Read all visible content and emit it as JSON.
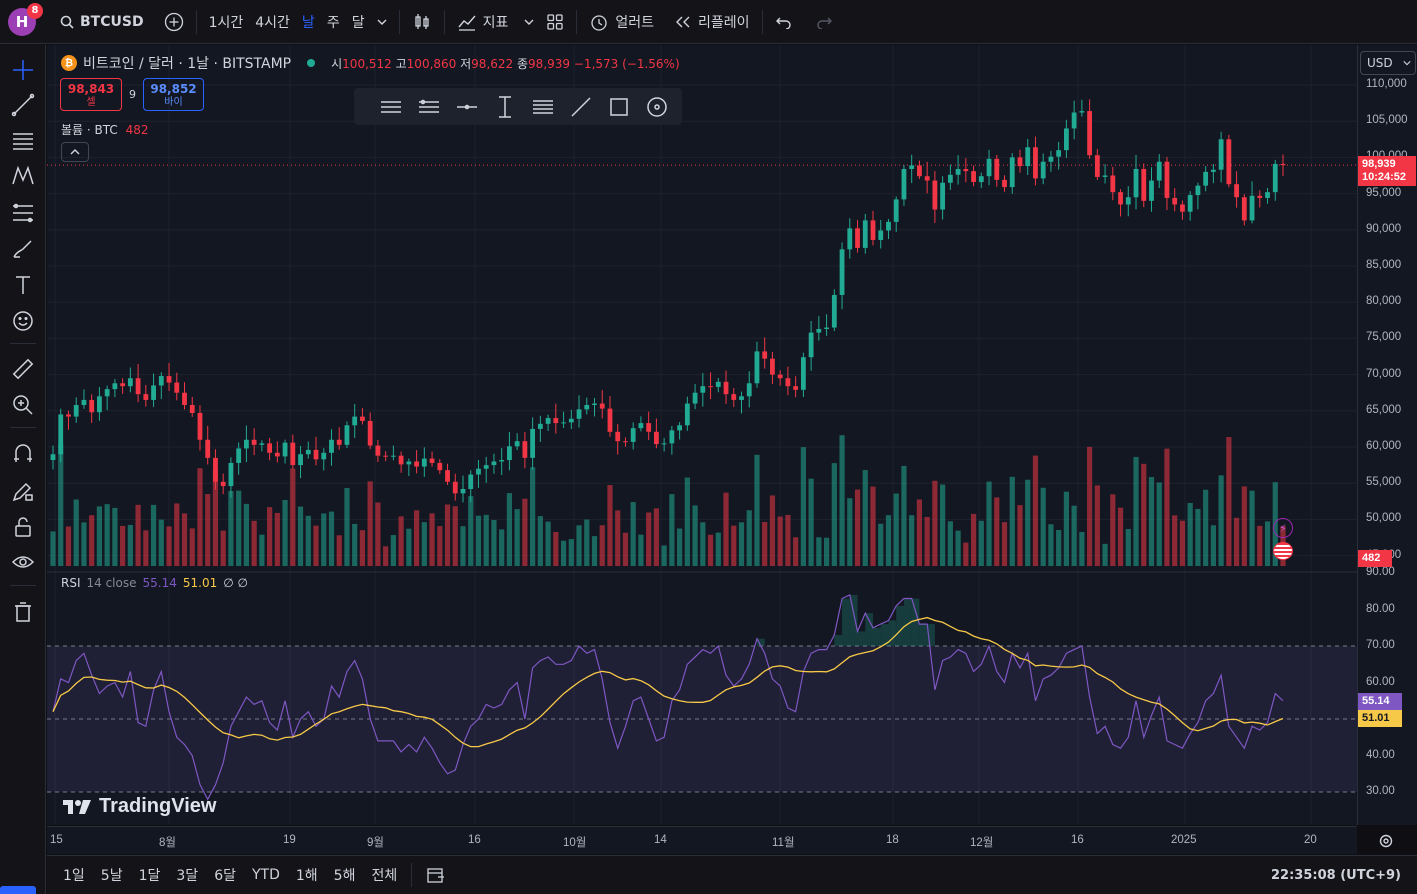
{
  "topbar": {
    "avatar_letter": "H",
    "avatar_badge": "8",
    "symbol": "BTCUSD",
    "intervals": [
      "1시간",
      "4시간",
      "날",
      "주",
      "달"
    ],
    "active_interval": "날",
    "indicators_label": "지표",
    "alert_label": "얼러트",
    "replay_label": "리플레이"
  },
  "legend": {
    "title": "비트코인 / 달러 · 1날 · BITSTAMP",
    "open_label": "시",
    "open": "100,512",
    "high_label": "고",
    "high": "100,860",
    "low_label": "저",
    "low": "98,622",
    "close_label": "종",
    "close": "98,939",
    "change": "−1,573 (−1.56%)",
    "sell_price": "98,843",
    "sell_label": "셀",
    "spread": "9",
    "buy_price": "98,852",
    "buy_label": "바이",
    "volume_label": "볼륨 · BTC",
    "volume_value": "482"
  },
  "rsi_legend": {
    "name": "RSI",
    "params": "14 close",
    "rsi_value": "55.14",
    "ma_value": "51.01",
    "extra": "∅ ∅"
  },
  "right_axis": {
    "currency": "USD",
    "price_levels": [
      "110,000",
      "105,000",
      "100,000",
      "95,000",
      "90,000",
      "85,000",
      "80,000",
      "75,000",
      "70,000",
      "65,000",
      "60,000",
      "55,000",
      "50,000",
      "45,000"
    ],
    "current_price": "98,939",
    "countdown": "10:24:52",
    "volume_tag": "482",
    "rsi_levels": [
      "90.00",
      "80.00",
      "70.00",
      "60.00",
      "50.00",
      "40.00",
      "30.00"
    ],
    "rsi_tag": "55.14",
    "rsi_ma_tag": "51.01"
  },
  "time_axis": [
    "15",
    "8월",
    "19",
    "9월",
    "16",
    "10월",
    "14",
    "11월",
    "18",
    "12월",
    "16",
    "2025",
    "20"
  ],
  "bottombar": {
    "ranges": [
      "1일",
      "5날",
      "1달",
      "3달",
      "6달",
      "YTD",
      "1해",
      "5해",
      "전체"
    ],
    "clock": "22:35:08 (UTC+9)"
  },
  "watermark": "TradingView",
  "colors": {
    "up": "#22ab94",
    "down": "#f23645",
    "rsi": "#7e57c2",
    "rsi_ma": "#f7c948",
    "accent": "#2962ff"
  },
  "chart_data": {
    "type": "candlestick",
    "price_ylim": [
      45000,
      110000
    ],
    "rsi_ylim": [
      30,
      90
    ],
    "closes": [
      59000,
      64500,
      64200,
      65800,
      66500,
      64800,
      67000,
      68000,
      68800,
      68400,
      69500,
      67300,
      66500,
      68500,
      69800,
      68900,
      67500,
      65800,
      64700,
      61000,
      58500,
      55200,
      54600,
      57800,
      59800,
      61000,
      60300,
      60500,
      59200,
      58700,
      60600,
      57500,
      59000,
      59600,
      58300,
      59200,
      61000,
      60300,
      63000,
      64200,
      63600,
      60200,
      58800,
      58700,
      58800,
      57600,
      58000,
      57300,
      58400,
      57800,
      56800,
      55200,
      53600,
      54200,
      56200,
      57000,
      57500,
      58000,
      58200,
      60100,
      60800,
      58500,
      62500,
      63200,
      64000,
      63300,
      63400,
      63900,
      65200,
      65800,
      66000,
      65300,
      62100,
      60800,
      60700,
      62600,
      63300,
      62100,
      60400,
      60500,
      62300,
      63000,
      66000,
      67500,
      68400,
      68300,
      69000,
      67300,
      66500,
      67000,
      68800,
      73200,
      72200,
      70000,
      69500,
      68400,
      67900,
      72400,
      75800,
      76300,
      76500,
      81000,
      87300,
      90200,
      87500,
      91300,
      88600,
      89900,
      91100,
      94200,
      98400,
      98900,
      97400,
      96800,
      92800,
      96500,
      97600,
      98400,
      98100,
      96600,
      97400,
      99800,
      96900,
      95900,
      100000,
      98800,
      101400,
      97100,
      99400,
      100100,
      101000,
      104000,
      106200,
      106400,
      100300,
      97300,
      97500,
      95200,
      93500,
      94500,
      98400,
      94000,
      96800,
      99400,
      94400,
      93500,
      92500,
      94800,
      96100,
      98000,
      98300,
      102500,
      96300,
      94500,
      91300,
      94700,
      94400,
      95200,
      99100,
      98939
    ],
    "rsi_values": [
      52,
      61,
      60,
      66,
      68,
      62,
      57,
      59,
      60,
      56,
      63,
      49,
      48,
      58,
      63,
      52,
      45,
      43,
      40,
      32,
      28,
      32,
      38,
      48,
      52,
      56,
      54,
      55,
      49,
      47,
      55,
      45,
      50,
      52,
      48,
      50,
      59,
      56,
      63,
      66,
      61,
      50,
      44,
      44,
      44,
      41,
      43,
      41,
      45,
      42,
      38,
      35,
      36,
      43,
      48,
      50,
      54,
      53,
      54,
      58,
      60,
      50,
      64,
      66,
      67,
      65,
      65,
      66,
      70,
      68,
      69,
      61,
      49,
      42,
      48,
      55,
      56,
      50,
      44,
      45,
      55,
      58,
      65,
      67,
      69,
      68,
      70,
      62,
      59,
      61,
      65,
      72,
      68,
      61,
      59,
      53,
      52,
      63,
      68,
      69,
      69,
      73,
      83,
      84,
      74,
      79,
      75,
      76,
      77,
      81,
      83,
      83,
      76,
      76,
      58,
      66,
      67,
      69,
      68,
      63,
      65,
      70,
      63,
      60,
      68,
      64,
      68,
      55,
      61,
      62,
      64,
      68,
      69,
      70,
      56,
      46,
      48,
      43,
      42,
      45,
      55,
      45,
      51,
      56,
      44,
      43,
      42,
      46,
      49,
      55,
      57,
      62,
      48,
      45,
      42,
      48,
      47,
      49,
      57,
      55
    ]
  }
}
